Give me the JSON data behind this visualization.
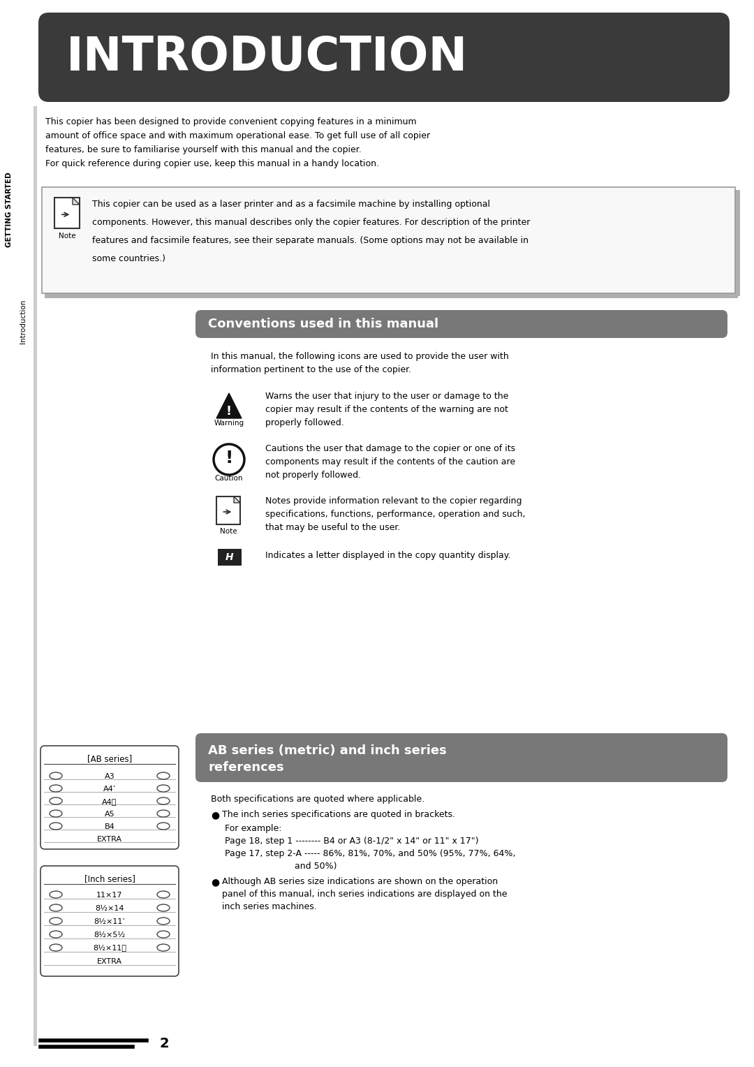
{
  "bg_color": "#ffffff",
  "header_bg": "#3a3a3a",
  "header_text": "INTRODUCTION",
  "header_text_color": "#ffffff",
  "section_bg": "#787878",
  "section_text_color": "#ffffff",
  "body_text_color": "#000000",
  "left_sidebar_text": "GETTING STARTED",
  "left_sidebar2_text": "Introduction",
  "intro_paragraph": "This copier has been designed to provide convenient copying features in a minimum\namount of office space and with maximum operational ease. To get full use of all copier\nfeatures, be sure to familiarise yourself with this manual and the copier.\nFor quick reference during copier use, keep this manual in a handy location.",
  "note_box_text1": "This copier can be used as a laser printer and as a facsimile machine by installing optional",
  "note_box_text2": "components. However, this manual describes only the copier features. For description of the printer",
  "note_box_text3": "features and facsimile features, see their separate manuals. (Some options may not be available in",
  "note_box_text4": "some countries.)",
  "conventions_title": "Conventions used in this manual",
  "conv_intro1": "In this manual, the following icons are used to provide the user with",
  "conv_intro2": "information pertinent to the use of the copier.",
  "warning_text1": "Warns the user that injury to the user or damage to the",
  "warning_text2": "copier may result if the contents of the warning are not",
  "warning_text3": "properly followed.",
  "caution_text1": "Cautions the user that damage to the copier or one of its",
  "caution_text2": "components may result if the contents of the caution are",
  "caution_text3": "not properly followed.",
  "note_icon_text1": "Notes provide information relevant to the copier regarding",
  "note_icon_text2": "specifications, functions, performance, operation and such,",
  "note_icon_text3": "that may be useful to the user.",
  "letter_text": "Indicates a letter displayed in the copy quantity display.",
  "ab_section_line1": "AB series (metric) and inch series",
  "ab_section_line2": "references",
  "ab_intro": "Both specifications are quoted where applicable.",
  "ab_bullet1_text": "The inch series specifications are quoted in brackets.",
  "ab_for_example": "For example:",
  "ab_example1": "Page 18, step 1 -------- B4 or A3 (8-1/2\" x 14\" or 11\" x 17\")",
  "ab_example2a": "Page 17, step 2-A ----- 86%, 81%, 70%, and 50% (95%, 77%, 64%,",
  "ab_example2b": "and 50%)",
  "ab_bullet2_line1": "Although AB series size indications are shown on the operation",
  "ab_bullet2_line2": "panel of this manual, inch series indications are displayed on the",
  "ab_bullet2_line3": "inch series machines.",
  "page_number": "2",
  "ab_sizes": [
    "A3",
    "A4",
    "A4",
    "A5",
    "B4",
    "EXTRA"
  ],
  "inch_sizes": [
    "11×17",
    "8½×14",
    "8½×11",
    "8½×5½",
    "8½×11",
    "EXTRA"
  ]
}
